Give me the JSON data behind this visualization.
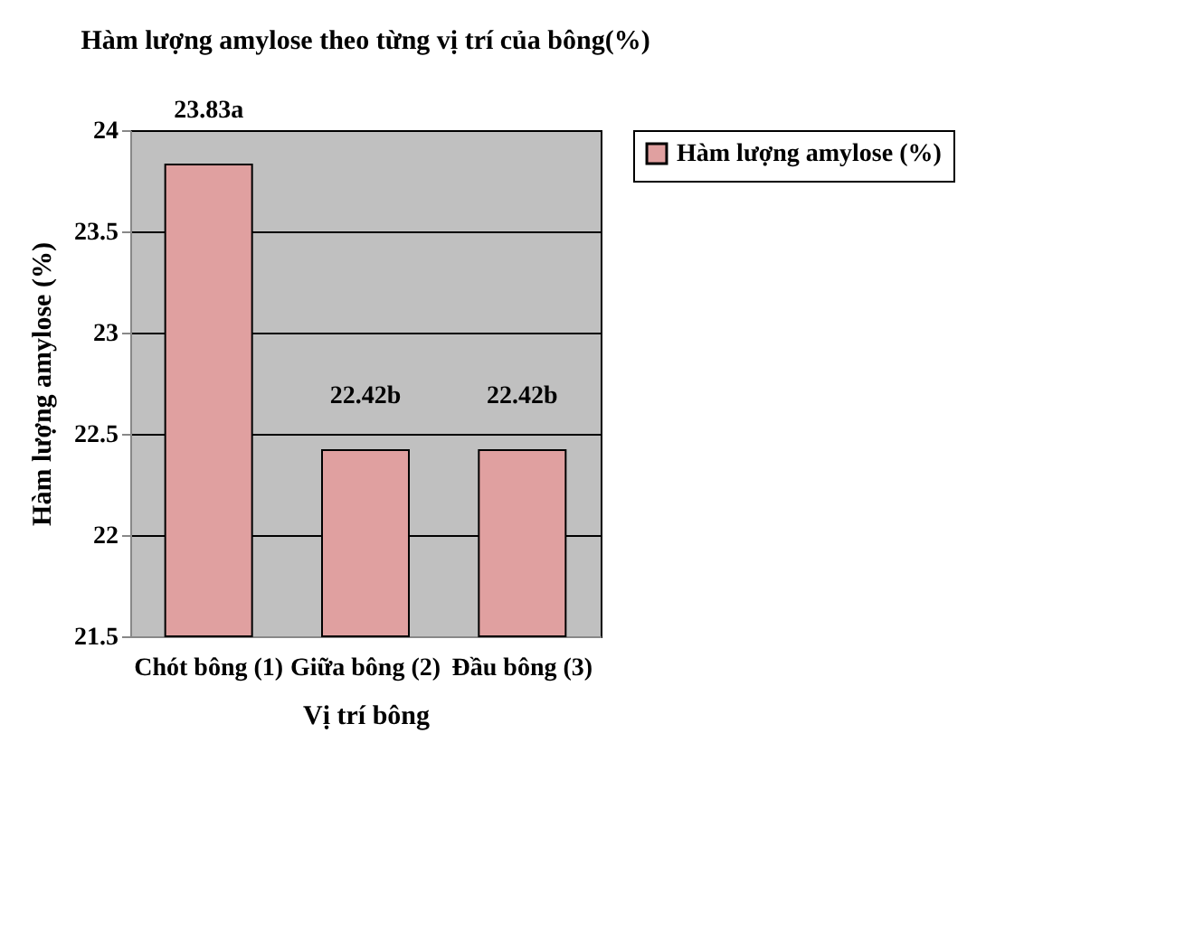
{
  "chart_data": {
    "type": "bar",
    "title": "Hàm lượng amylose theo từng vị trí của bông(%)",
    "xlabel": "Vị trí bông",
    "ylabel": "Hàm lượng amylose (%)",
    "categories": [
      "Chót bông (1)",
      "Giữa bông (2)",
      "Đầu bông (3)"
    ],
    "series": [
      {
        "name": "Hàm lượng amylose (%)",
        "color": "#e0a0a0",
        "values": [
          23.83,
          22.42,
          22.42
        ],
        "value_labels": [
          "23.83a",
          "22.42b",
          "22.42b"
        ]
      }
    ],
    "ylim": [
      21.5,
      24
    ],
    "yticks": [
      21.5,
      22,
      22.5,
      23,
      23.5,
      24
    ],
    "grid": "y",
    "legend": "right"
  }
}
